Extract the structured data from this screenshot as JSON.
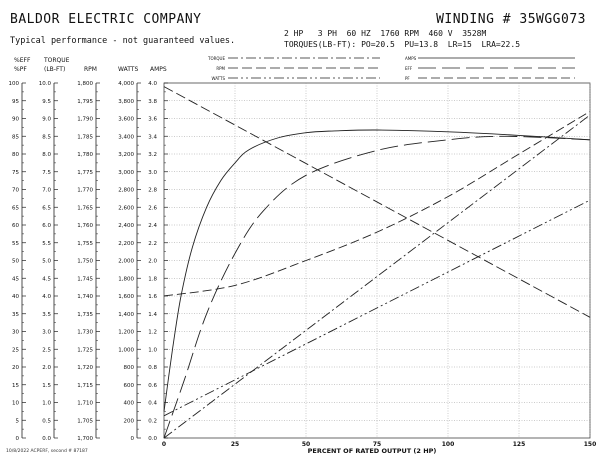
{
  "header": {
    "company": "BALDOR ELECTRIC COMPANY",
    "disclaimer": "Typical performance - not guaranteed values.",
    "winding": "WINDING # 35WGG073",
    "rating": "2 HP   3 PH  60 HZ  1760 RPM  460 V  3528M",
    "torques": "TORQUES(LB-FT): PO=20.5  PU=13.8  LR=15  LRA=22.5"
  },
  "footer_note": "10/8/2022 ACPERF, second # 87187",
  "legend": {
    "left": [
      "TORQUE",
      "RPM",
      "WATTS"
    ],
    "right": [
      "AMPS",
      "EFF",
      "PF"
    ]
  },
  "colors": {
    "line": "#222222",
    "grid": "#9a9a9a",
    "background": "#ffffff"
  },
  "chart_data": {
    "type": "line",
    "xlabel": "PERCENT OF RATED OUTPUT (2 HP)",
    "x_ticks": [
      "0",
      "25",
      "50",
      "75",
      "100",
      "125",
      "150"
    ],
    "xlim": [
      0,
      150
    ],
    "axes": [
      {
        "header1": "%EFF",
        "header2": "%PF",
        "ticks": [
          "100",
          "95",
          "90",
          "85",
          "80",
          "75",
          "70",
          "65",
          "60",
          "55",
          "50",
          "45",
          "40",
          "35",
          "30",
          "25",
          "20",
          "15",
          "10",
          "5",
          "0"
        ],
        "range": [
          0,
          100
        ]
      },
      {
        "header1": "TORQUE",
        "header2": "(LB-FT)",
        "ticks": [
          "10.0",
          "9.5",
          "9.0",
          "8.5",
          "8.0",
          "7.5",
          "7.0",
          "6.5",
          "6.0",
          "5.5",
          "5.0",
          "4.5",
          "4.0",
          "3.5",
          "3.0",
          "2.5",
          "2.0",
          "1.5",
          "1.0",
          "0.5",
          "0.0"
        ],
        "range": [
          0,
          10
        ]
      },
      {
        "header1": "",
        "header2": "RPM",
        "ticks": [
          "1,800",
          "1,795",
          "1,790",
          "1,785",
          "1,780",
          "1,775",
          "1,770",
          "1,765",
          "1,760",
          "1,755",
          "1,750",
          "1,745",
          "1,740",
          "1,735",
          "1,730",
          "1,725",
          "1,720",
          "1,715",
          "1,710",
          "1,705",
          "1,700"
        ],
        "range": [
          1700,
          1800
        ]
      },
      {
        "header1": "",
        "header2": "WATTS",
        "ticks": [
          "4,000",
          "3,800",
          "3,600",
          "3,400",
          "3,200",
          "3,000",
          "2,800",
          "2,600",
          "2,400",
          "2,200",
          "2,000",
          "1,800",
          "1,600",
          "1,400",
          "1,200",
          "1,000",
          "800",
          "600",
          "400",
          "200",
          "0"
        ],
        "range": [
          0,
          4000
        ]
      },
      {
        "header1": "",
        "header2": "AMPS",
        "ticks": [
          "4.0",
          "3.8",
          "3.6",
          "3.4",
          "3.2",
          "3.0",
          "2.8",
          "2.6",
          "2.4",
          "2.2",
          "2.0",
          "1.8",
          "1.6",
          "1.4",
          "1.2",
          "1.0",
          "0.8",
          "0.6",
          "0.4",
          "0.2",
          "0.0"
        ],
        "range": [
          0,
          4
        ]
      }
    ],
    "series": [
      {
        "name": "AMPS",
        "unit": "A",
        "dash": "none",
        "points": [
          [
            0,
            0.3
          ],
          [
            3,
            1.0
          ],
          [
            6,
            1.6
          ],
          [
            10,
            2.15
          ],
          [
            15,
            2.6
          ],
          [
            20,
            2.9
          ],
          [
            25,
            3.1
          ],
          [
            30,
            3.25
          ],
          [
            40,
            3.38
          ],
          [
            50,
            3.44
          ],
          [
            60,
            3.46
          ],
          [
            75,
            3.47
          ],
          [
            100,
            3.45
          ],
          [
            125,
            3.41
          ],
          [
            150,
            3.36
          ]
        ]
      },
      {
        "name": "EFF",
        "unit": "%",
        "dash": "18,6",
        "points": [
          [
            0,
            0
          ],
          [
            7,
            16
          ],
          [
            15,
            35
          ],
          [
            25,
            52
          ],
          [
            35,
            64
          ],
          [
            50,
            74
          ],
          [
            75,
            81
          ],
          [
            100,
            84
          ],
          [
            120,
            85
          ],
          [
            150,
            84
          ]
        ]
      },
      {
        "name": "PF",
        "unit": "%",
        "dash": "9,4",
        "points": [
          [
            0,
            40
          ],
          [
            25,
            43
          ],
          [
            50,
            50
          ],
          [
            75,
            58
          ],
          [
            100,
            68
          ],
          [
            125,
            80
          ],
          [
            150,
            92
          ]
        ]
      },
      {
        "name": "RPM",
        "unit": "rpm",
        "dash": "10,4",
        "points": [
          [
            0,
            1799
          ],
          [
            150,
            1734
          ]
        ]
      },
      {
        "name": "TORQUE",
        "unit": "lb-ft",
        "dash": "10,3,2,3",
        "points": [
          [
            0,
            0
          ],
          [
            150,
            9.1
          ]
        ]
      },
      {
        "name": "WATTS",
        "unit": "W",
        "dash": "10,3,2,3,2,3",
        "points": [
          [
            0,
            250
          ],
          [
            150,
            2680
          ]
        ]
      }
    ]
  }
}
